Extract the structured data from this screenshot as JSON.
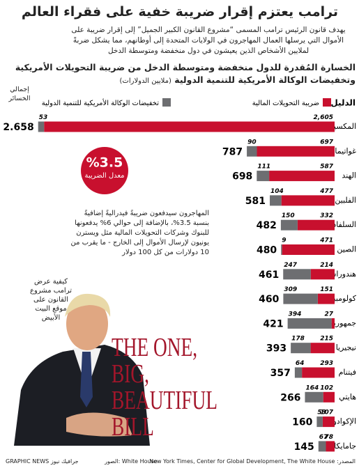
{
  "header": {
    "title": "ترامب يعتزم إقرار ضريبة خفية على فقراء العالم",
    "subtitle": "يهدف قانون الرئيس ترامب المسمى “مشروع القانون الكبير الجميل” إلى إقرار ضريبة على الأموال التي يرسلها العمال المهاجرون في الولايات المتحدة إلى أوطانهم، مما يشكل ضربةً لملايين الأشخاص الذين يعيشون في دول منخفضة ومتوسطة الدخل"
  },
  "chart_data": {
    "type": "bar",
    "title": "الخسارة المُقدرة للدول منخفضة ومتوسطة الدخل من ضريبة التحويلات الأمريكية وتخفيضات الوكالة الأمريكية للتنمية الدولية",
    "unit": "(ملايين الدولارات)",
    "legend_title": "الدليل",
    "totals_header": "إجمالي الخسائر",
    "categories": [
      "المكسيك",
      "غواتيمالا",
      "الهند",
      "الفلبين",
      "السلفادور",
      "الصين",
      "هندوراس",
      "كولومبيا",
      "جمهورية الدومينيكان",
      "نيجيريا",
      "فيتنام",
      "هايتي",
      "الإكوادور",
      "جامايكا"
    ],
    "series": [
      {
        "name": "ضريبة التحويلات المالية",
        "color": "#c8102e",
        "values": [
          2605,
          697,
          587,
          477,
          332,
          471,
          214,
          151,
          27,
          215,
          293,
          102,
          107,
          78
        ],
        "value_labels": [
          "2,605",
          "697",
          "587",
          "477",
          "332",
          "471",
          "214",
          "151",
          "27",
          "215",
          "293",
          "102",
          "107",
          "78"
        ]
      },
      {
        "name": "تخفيضات الوكالة الأمريكية للتنمية الدولية",
        "color": "#6d6e71",
        "values": [
          53,
          90,
          111,
          104,
          150,
          9,
          247,
          309,
          394,
          178,
          64,
          164,
          53,
          67
        ]
      }
    ],
    "totals": [
      {
        "value": 2658,
        "label": "2.658"
      },
      787,
      698,
      581,
      482,
      480,
      461,
      460,
      421,
      393,
      357,
      266,
      160,
      145
    ]
  },
  "annotations": {
    "rate_value": "%3.5",
    "rate_label": "معدل الضريبة",
    "note": "المهاجرون سيدفعون ضريبةً فيدراليةً إضافيةً بنسبة 3.5%، بالإضافة إلى حوالي 6% يدفعونها للبنوك وشركات التحويلات المالية مثل ويسترن يونيون لإرسال الأموال إلى الخارج - ما يقرب من 10 دولارات من كل 100 دولار",
    "photo_caption": "كيفية عرض ترامب مشروع القانون على موقع البيت الأبيض",
    "book_title": "THE ONE, BIG, BEAUTIFUL BILL"
  },
  "footer": {
    "source": "المصدر: New York Times, Center for Global Development, The White House",
    "photos": "الصور: White House",
    "brand": "GRAPHIC NEWS جرافيك نيوز"
  }
}
